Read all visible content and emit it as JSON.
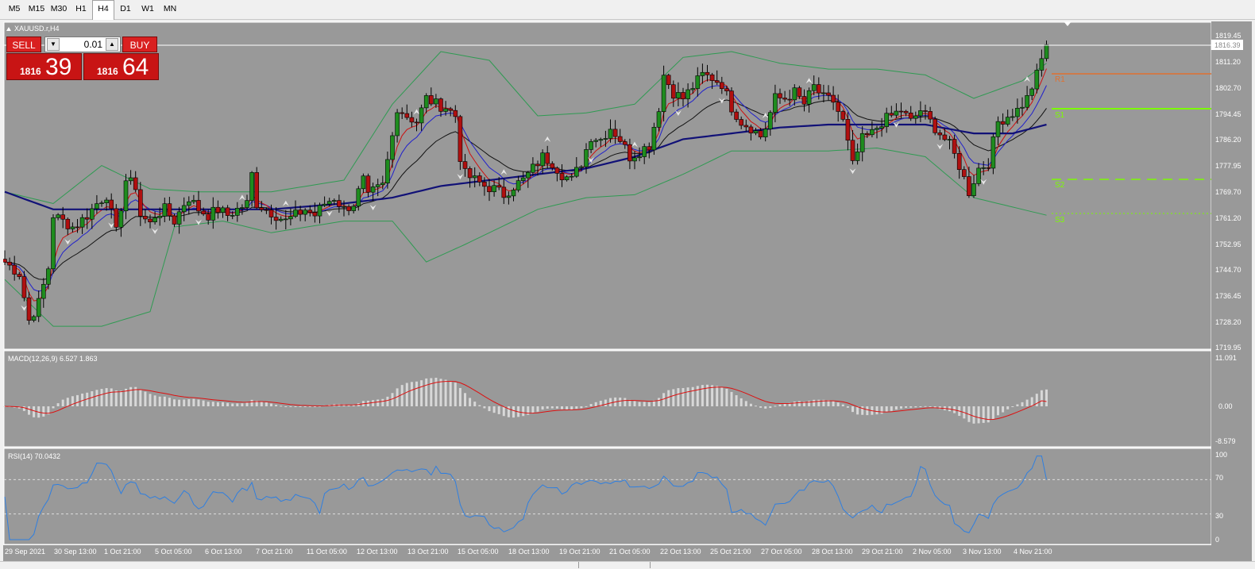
{
  "toolbar": {
    "timeframes": [
      "M5",
      "M15",
      "M30",
      "H1",
      "H4",
      "D1",
      "W1",
      "MN"
    ],
    "active": "H4"
  },
  "chart": {
    "symbol_label": "XAUUSD.r,H4",
    "current_price": "1816.39",
    "price_axis_labels": [
      "1819.45",
      "1811.20",
      "1802.70",
      "1794.45",
      "1786.20",
      "1777.95",
      "1769.70",
      "1761.20",
      "1752.95",
      "1744.70",
      "1736.45",
      "1728.20",
      "1719.95"
    ],
    "date_labels": [
      "29 Sep 2021",
      "30 Sep 13:00",
      "1 Oct 21:00",
      "5 Oct 05:00",
      "6 Oct 13:00",
      "7 Oct 21:00",
      "11 Oct 05:00",
      "12 Oct 13:00",
      "13 Oct 21:00",
      "15 Oct 05:00",
      "18 Oct 13:00",
      "19 Oct 21:00",
      "21 Oct 05:00",
      "22 Oct 13:00",
      "25 Oct 21:00",
      "27 Oct 05:00",
      "28 Oct 13:00",
      "29 Oct 21:00",
      "2 Nov 05:00",
      "3 Nov 13:00",
      "4 Nov 21:00"
    ],
    "pivot_labels": {
      "r": "R1",
      "s1": "S1",
      "s2": "S2",
      "s3": "S3"
    },
    "colors": {
      "background": "#999999",
      "bull": "#1e8c1e",
      "bear": "#b01010",
      "grid": "#ffffff",
      "band": "#2f9a52",
      "ma_slow": "#111177",
      "ma_fast_red": "#cc1010",
      "ma_blue": "#2020cc",
      "ma_black": "#111111"
    }
  },
  "trade_panel": {
    "sell_label": "SELL",
    "buy_label": "BUY",
    "lot": "0.01",
    "bid_small": "1816",
    "bid_big": "39",
    "ask_small": "1816",
    "ask_big": "64"
  },
  "macd": {
    "label": "MACD(12,26,9) 6.527 1.863",
    "axis_labels": [
      "11.091",
      "0.00",
      "-8.579"
    ]
  },
  "rsi": {
    "label": "RSI(14) 70.0432",
    "axis_labels": [
      "100",
      "70",
      "30",
      "0"
    ]
  },
  "chart_data": {
    "type": "candlestick",
    "symbol": "XAUUSD.r",
    "timeframe": "H4",
    "current_price": 1816.39,
    "ylim": [
      1716.5,
      1823.5
    ],
    "y_ticks": [
      1819.45,
      1811.2,
      1802.7,
      1794.45,
      1786.2,
      1777.95,
      1769.7,
      1761.2,
      1752.95,
      1744.7,
      1736.45,
      1728.2,
      1719.95
    ],
    "close_path": [
      [
        0,
        1742
      ],
      [
        3,
        1738
      ],
      [
        5,
        1722
      ],
      [
        7,
        1728
      ],
      [
        9,
        1740
      ],
      [
        10,
        1758
      ],
      [
        12,
        1756
      ],
      [
        14,
        1754
      ],
      [
        15,
        1755
      ],
      [
        17,
        1758
      ],
      [
        19,
        1762
      ],
      [
        21,
        1765
      ],
      [
        23,
        1752
      ],
      [
        25,
        1770
      ],
      [
        27,
        1768
      ],
      [
        28,
        1758
      ],
      [
        30,
        1755
      ],
      [
        31,
        1758
      ],
      [
        33,
        1760
      ],
      [
        35,
        1756
      ],
      [
        37,
        1762
      ],
      [
        38,
        1764
      ],
      [
        40,
        1760
      ],
      [
        42,
        1758
      ],
      [
        44,
        1760
      ],
      [
        46,
        1758
      ],
      [
        48,
        1760
      ],
      [
        50,
        1762
      ],
      [
        51,
        1772
      ],
      [
        52,
        1762
      ],
      [
        54,
        1760
      ],
      [
        56,
        1758
      ],
      [
        58,
        1756
      ],
      [
        60,
        1758
      ],
      [
        62,
        1760
      ],
      [
        64,
        1758
      ],
      [
        66,
        1762
      ],
      [
        68,
        1764
      ],
      [
        70,
        1760
      ],
      [
        72,
        1762
      ],
      [
        74,
        1770
      ],
      [
        75,
        1764
      ],
      [
        76,
        1766
      ],
      [
        78,
        1768
      ],
      [
        80,
        1785
      ],
      [
        81,
        1795
      ],
      [
        83,
        1792
      ],
      [
        85,
        1790
      ],
      [
        87,
        1798
      ],
      [
        89,
        1796
      ],
      [
        91,
        1795
      ],
      [
        93,
        1792
      ],
      [
        94,
        1778
      ],
      [
        95,
        1772
      ],
      [
        97,
        1770
      ],
      [
        99,
        1768
      ],
      [
        101,
        1767
      ],
      [
        103,
        1765
      ],
      [
        105,
        1768
      ],
      [
        107,
        1770
      ],
      [
        109,
        1774
      ],
      [
        111,
        1778
      ],
      [
        113,
        1776
      ],
      [
        115,
        1772
      ],
      [
        117,
        1770
      ],
      [
        119,
        1776
      ],
      [
        121,
        1785
      ],
      [
        123,
        1784
      ],
      [
        125,
        1788
      ],
      [
        127,
        1784
      ],
      [
        129,
        1778
      ],
      [
        131,
        1780
      ],
      [
        133,
        1782
      ],
      [
        135,
        1795
      ],
      [
        136,
        1806
      ],
      [
        138,
        1800
      ],
      [
        140,
        1798
      ],
      [
        142,
        1802
      ],
      [
        144,
        1806
      ],
      [
        146,
        1805
      ],
      [
        148,
        1803
      ],
      [
        150,
        1795
      ],
      [
        152,
        1790
      ],
      [
        154,
        1788
      ],
      [
        156,
        1785
      ],
      [
        157,
        1788
      ],
      [
        159,
        1798
      ],
      [
        161,
        1798
      ],
      [
        163,
        1800
      ],
      [
        165,
        1796
      ],
      [
        167,
        1802
      ],
      [
        169,
        1798
      ],
      [
        171,
        1797
      ],
      [
        173,
        1790
      ],
      [
        175,
        1775
      ],
      [
        177,
        1784
      ],
      [
        179,
        1786
      ],
      [
        181,
        1790
      ],
      [
        183,
        1792
      ],
      [
        185,
        1794
      ],
      [
        187,
        1790
      ],
      [
        189,
        1794
      ],
      [
        191,
        1790
      ],
      [
        193,
        1786
      ],
      [
        195,
        1782
      ],
      [
        197,
        1775
      ],
      [
        199,
        1766
      ],
      [
        201,
        1774
      ],
      [
        203,
        1776
      ],
      [
        205,
        1790
      ],
      [
        207,
        1792
      ],
      [
        209,
        1794
      ],
      [
        211,
        1798
      ],
      [
        213,
        1806
      ],
      [
        215,
        1816.4
      ]
    ],
    "bollinger_upper": [
      [
        0,
        1766
      ],
      [
        10,
        1762
      ],
      [
        20,
        1775
      ],
      [
        30,
        1767
      ],
      [
        40,
        1766
      ],
      [
        55,
        1766
      ],
      [
        70,
        1770
      ],
      [
        80,
        1796
      ],
      [
        90,
        1814
      ],
      [
        100,
        1811
      ],
      [
        110,
        1792
      ],
      [
        120,
        1793
      ],
      [
        130,
        1796
      ],
      [
        140,
        1812
      ],
      [
        150,
        1814
      ],
      [
        160,
        1810
      ],
      [
        170,
        1808
      ],
      [
        180,
        1808
      ],
      [
        190,
        1806
      ],
      [
        200,
        1798
      ],
      [
        210,
        1804
      ],
      [
        215,
        1810
      ]
    ],
    "bollinger_lower": [
      [
        0,
        1736
      ],
      [
        10,
        1720
      ],
      [
        20,
        1720
      ],
      [
        30,
        1725
      ],
      [
        35,
        1754
      ],
      [
        45,
        1756
      ],
      [
        55,
        1752
      ],
      [
        70,
        1756
      ],
      [
        80,
        1756
      ],
      [
        87,
        1742
      ],
      [
        95,
        1748
      ],
      [
        110,
        1760
      ],
      [
        120,
        1764
      ],
      [
        130,
        1765
      ],
      [
        140,
        1772
      ],
      [
        150,
        1780
      ],
      [
        160,
        1780
      ],
      [
        170,
        1780
      ],
      [
        180,
        1781
      ],
      [
        190,
        1778
      ],
      [
        200,
        1764
      ],
      [
        210,
        1760
      ],
      [
        215,
        1758
      ]
    ],
    "ma_slow": [
      [
        0,
        1766
      ],
      [
        10,
        1760
      ],
      [
        20,
        1760
      ],
      [
        30,
        1760
      ],
      [
        40,
        1760
      ],
      [
        55,
        1760
      ],
      [
        70,
        1762
      ],
      [
        80,
        1764
      ],
      [
        90,
        1768
      ],
      [
        100,
        1770
      ],
      [
        110,
        1772
      ],
      [
        120,
        1774
      ],
      [
        130,
        1778
      ],
      [
        140,
        1784
      ],
      [
        150,
        1786
      ],
      [
        160,
        1788
      ],
      [
        170,
        1789
      ],
      [
        180,
        1789
      ],
      [
        190,
        1789
      ],
      [
        200,
        1786
      ],
      [
        208,
        1786
      ],
      [
        215,
        1789
      ]
    ],
    "rsi": {
      "last": 70.0432,
      "levels": [
        70,
        30
      ],
      "ylim": [
        0,
        100
      ]
    },
    "macd": {
      "params": [
        12,
        26,
        9
      ],
      "main": 6.527,
      "signal": 1.863,
      "ylim": [
        -8.579,
        11.091
      ]
    }
  }
}
